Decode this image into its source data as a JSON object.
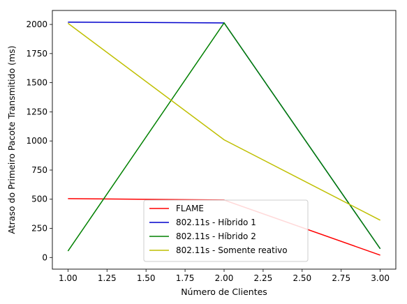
{
  "chart_data": {
    "type": "line",
    "title": "",
    "xlabel": "Número de Clientes",
    "ylabel": "Atraso do Primeiro Pacote Transmitido (ms)",
    "x": [
      1.0,
      2.0,
      3.0
    ],
    "xlim": [
      0.9,
      3.1
    ],
    "ylim": [
      -100,
      2120
    ],
    "xticks": [
      1.0,
      1.25,
      1.5,
      1.75,
      2.0,
      2.25,
      2.5,
      2.75,
      3.0
    ],
    "xtick_labels": [
      "1.00",
      "1.25",
      "1.50",
      "1.75",
      "2.00",
      "2.25",
      "2.50",
      "2.75",
      "3.00"
    ],
    "yticks": [
      0,
      250,
      500,
      750,
      1000,
      1250,
      1500,
      1750,
      2000
    ],
    "ytick_labels": [
      "0",
      "250",
      "500",
      "750",
      "1000",
      "1250",
      "1500",
      "1750",
      "2000"
    ],
    "grid": false,
    "legend_position": "bottom-center",
    "series": [
      {
        "name": "FLAME",
        "color": "#ff0000",
        "values": [
          505,
          493,
          20
        ]
      },
      {
        "name": "802.11s - Híbrido 1",
        "color": "#0000cc",
        "values": [
          2020,
          2013,
          75
        ]
      },
      {
        "name": "802.11s - Híbrido 2",
        "color": "#008000",
        "values": [
          55,
          2013,
          75
        ]
      },
      {
        "name": "802.11s - Somente reativo",
        "color": "#bfbf00",
        "values": [
          2010,
          1010,
          320
        ]
      }
    ]
  }
}
